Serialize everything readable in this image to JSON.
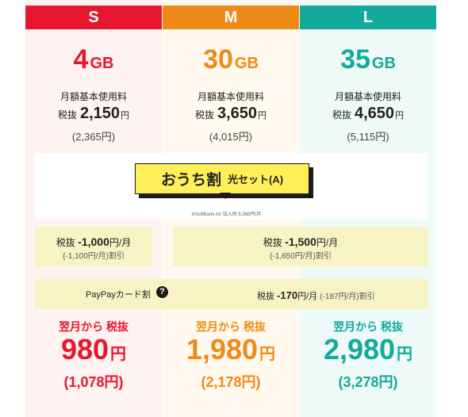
{
  "colors": {
    "s": "#e6162e",
    "m": "#f08a16",
    "l": "#12aa9a",
    "yellow": "#fff05a"
  },
  "plans": [
    {
      "name": "S",
      "data_amount": "4",
      "data_unit": "GB",
      "monthly_fee_label": "月額基本使用料",
      "price_prefix": "税抜",
      "price": "2,150",
      "price_unit": "円",
      "tax_incl": "(2,365円)",
      "final_label": "翌月から 税抜",
      "final_price": "980",
      "final_unit": "円",
      "final_tax_incl": "(1,078円)"
    },
    {
      "name": "M",
      "data_amount": "30",
      "data_unit": "GB",
      "monthly_fee_label": "月額基本使用料",
      "price_prefix": "税抜",
      "price": "3,650",
      "price_unit": "円",
      "tax_incl": "(4,015円)",
      "final_label": "翌月から 税抜",
      "final_price": "1,980",
      "final_unit": "円",
      "final_tax_incl": "(2,178円)"
    },
    {
      "name": "L",
      "data_amount": "35",
      "data_unit": "GB",
      "monthly_fee_label": "月額基本使用料",
      "price_prefix": "税抜",
      "price": "4,650",
      "price_unit": "円",
      "tax_incl": "(5,115円)",
      "final_label": "翌月から 税抜",
      "final_price": "2,980",
      "final_unit": "円",
      "final_tax_incl": "(3,278円)"
    }
  ],
  "bundle": {
    "title": "おうち割",
    "suffix": "光セット(A)",
    "note": "※SoftBank Air 加入例 5,368円/月"
  },
  "discount_s": {
    "prefix": "税抜",
    "amount": "-1,000",
    "unit": "円/月",
    "note": "(-1,100円/月)割引"
  },
  "discount_ml": {
    "prefix": "税抜",
    "amount": "-1,500",
    "unit": "円/月",
    "note": "(-1,650円/月)割引"
  },
  "paypay": {
    "label": "PayPayカード割",
    "help_icon": "question-icon",
    "prefix": "税抜",
    "amount": "-170",
    "unit": "円/月",
    "note": "(-187円/月)割引"
  }
}
